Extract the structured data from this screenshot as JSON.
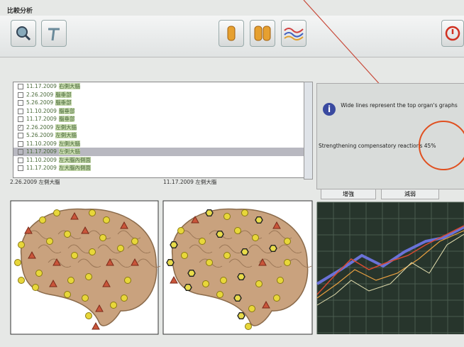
{
  "window_title": "比較分析",
  "list": {
    "items": [
      {
        "date": "11.17.2009",
        "name": "右側大腦",
        "checked": false
      },
      {
        "date": "2.26.2009",
        "name": "腦垂部",
        "checked": false
      },
      {
        "date": "5.26.2009",
        "name": "腦垂部",
        "checked": false
      },
      {
        "date": "11.10.2009",
        "name": "腦垂部",
        "checked": false
      },
      {
        "date": "11.17.2009",
        "name": "腦垂部",
        "checked": false
      },
      {
        "date": "2.26.2009",
        "name": "左側大腦",
        "checked": true
      },
      {
        "date": "5.26.2009",
        "name": "左側大腦",
        "checked": false
      },
      {
        "date": "11.10.2009",
        "name": "左側大腦",
        "checked": false
      },
      {
        "date": "11.17.2009",
        "name": "左側大腦",
        "checked": false
      },
      {
        "date": "11.10.2009",
        "name": "左大腦內側面",
        "checked": false
      },
      {
        "date": "11.17.2009",
        "name": "左大腦內側面",
        "checked": false
      }
    ],
    "selected": 8
  },
  "panels": [
    {
      "label": "2.26.2009 左側大腦"
    },
    {
      "label": "11.17.2009 左側大腦"
    }
  ],
  "info": {
    "line1": "Wide lines represent the top organ's graphs",
    "line2": "Strengthening compensatory reactions 45%"
  },
  "buttons": [
    "增強",
    "減弱"
  ]
}
